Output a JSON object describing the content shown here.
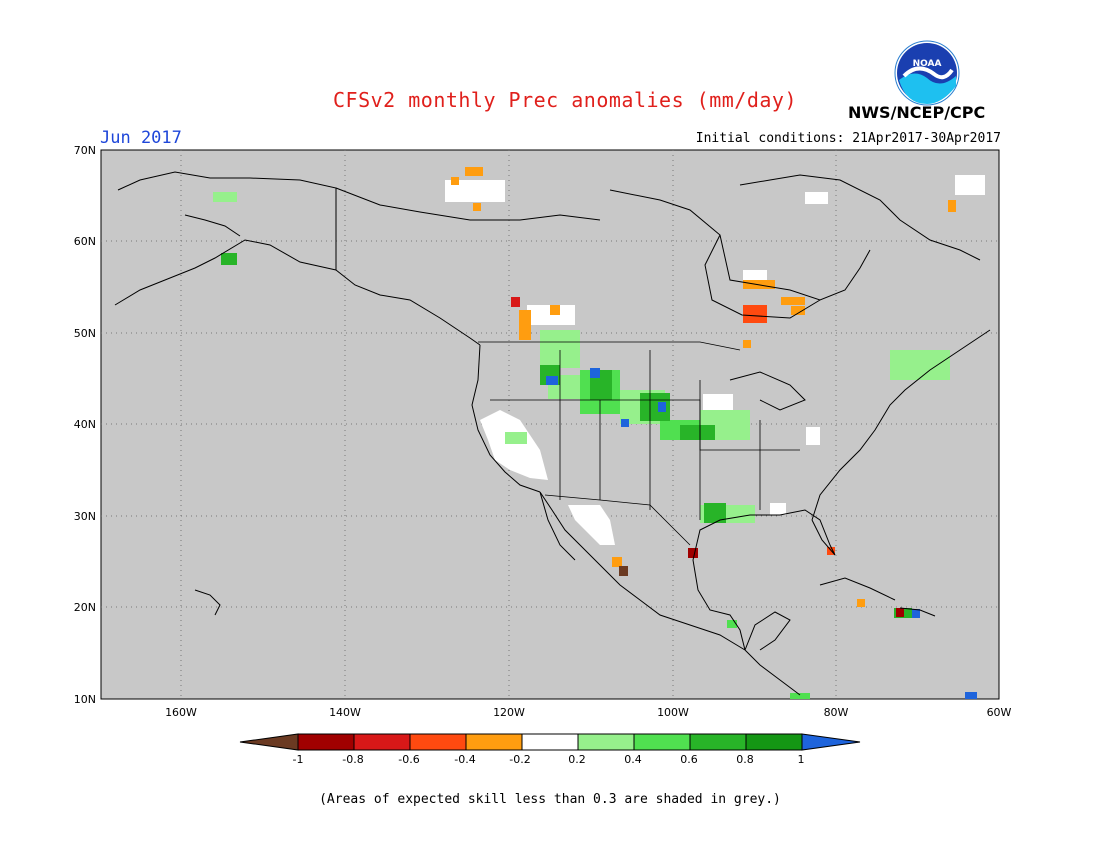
{
  "header": {
    "title": "CFSv2 monthly Prec anomalies (mm/day)",
    "org": "NWS/NCEP/CPC",
    "logo_text": "NOAA",
    "month": "Jun 2017",
    "initial_conditions": "Initial conditions: 21Apr2017-30Apr2017"
  },
  "map": {
    "lat_labels": [
      "70N",
      "60N",
      "50N",
      "40N",
      "30N",
      "20N",
      "10N"
    ],
    "lon_labels": [
      "160W",
      "140W",
      "120W",
      "100W",
      "80W",
      "60W"
    ],
    "background_color": "#c8c8c8"
  },
  "legend": {
    "labels": [
      "-1",
      "-0.8",
      "-0.6",
      "-0.4",
      "-0.2",
      "0.2",
      "0.4",
      "0.6",
      "0.8",
      "1"
    ],
    "colors": [
      "#6b3a22",
      "#a00000",
      "#d81818",
      "#ff4a10",
      "#ff9d10",
      "#ffffff",
      "#96f08c",
      "#50e050",
      "#28b428",
      "#149614",
      "#1e64dc"
    ]
  },
  "caption": "(Areas of expected skill less than 0.3 are shaded in grey.)"
}
